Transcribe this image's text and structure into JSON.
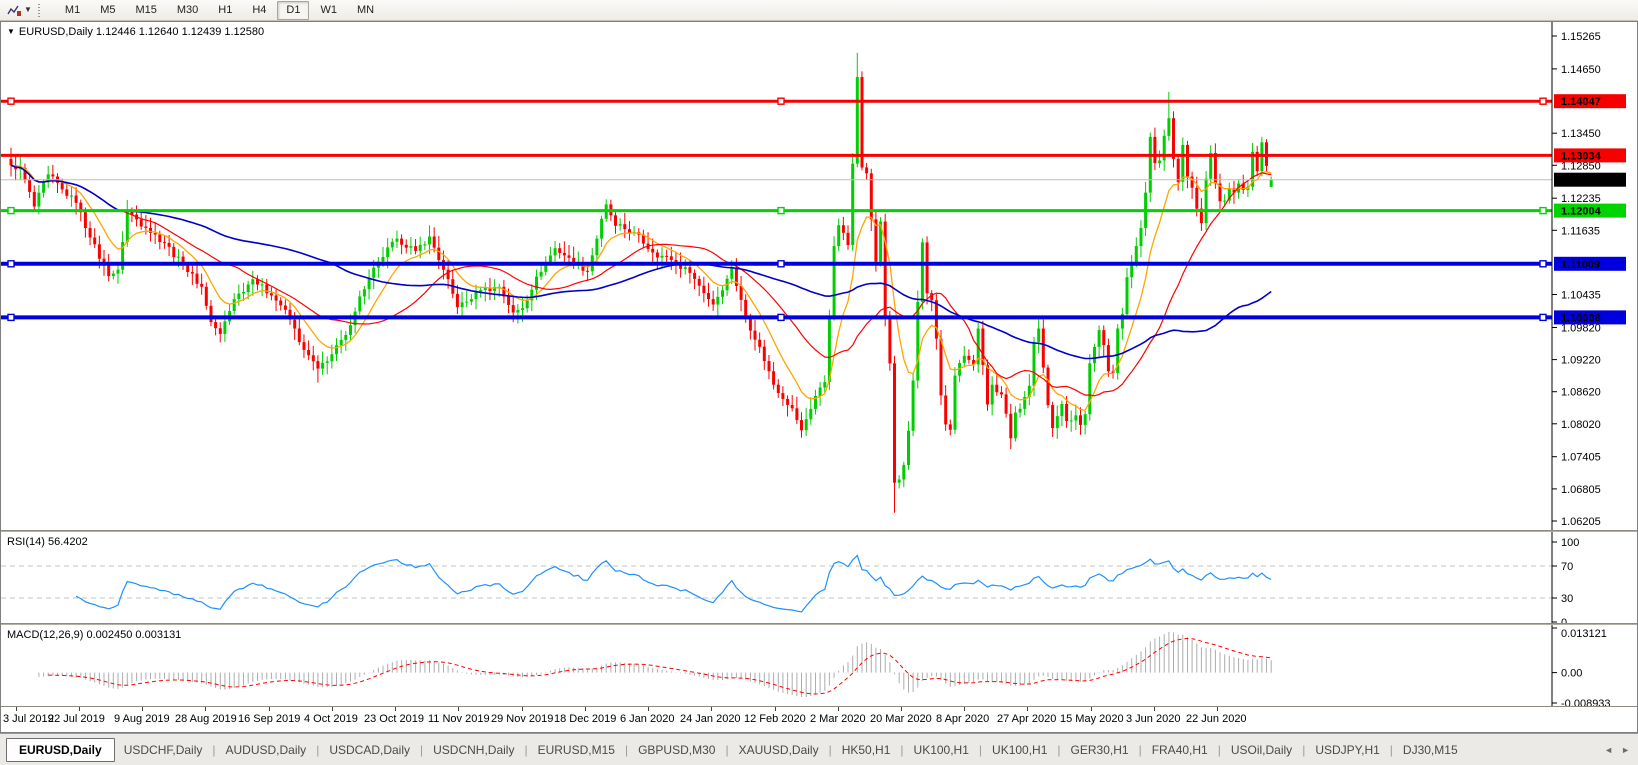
{
  "toolbar": {
    "timeframes": [
      "M1",
      "M5",
      "M15",
      "M30",
      "H1",
      "H4",
      "D1",
      "W1",
      "MN"
    ],
    "active_timeframe": "D1"
  },
  "chart": {
    "symbol_label": "EURUSD,Daily",
    "title_line": "EURUSD,Daily 1.12446 1.12640 1.12439 1.12580"
  },
  "price_scale": {
    "ticks": [
      "1.15265",
      "1.14650",
      "1.13450",
      "1.12850",
      "1.12235",
      "1.11635",
      "1.10435",
      "1.09820",
      "1.09220",
      "1.08620",
      "1.08020",
      "1.07405",
      "1.06805",
      "1.06205"
    ]
  },
  "hlines": [
    {
      "label": "1.14047",
      "price": 1.14047,
      "color": "#F60000",
      "width": 3,
      "selected": true
    },
    {
      "label": "1.13034",
      "price": 1.13034,
      "color": "#F60000",
      "width": 3,
      "selected": false
    },
    {
      "label": "1.12004",
      "price": 1.12004,
      "color": "#00D400",
      "width": 3,
      "selected": true
    },
    {
      "label": "1.11009",
      "price": 1.11009,
      "color": "#0000DE",
      "width": 4,
      "selected": true
    },
    {
      "label": "1.10008",
      "price": 1.10008,
      "color": "#0000DE",
      "width": 4,
      "selected": true
    }
  ],
  "current_price": {
    "label": "1.12580",
    "price": 1.1258,
    "line_color": "#BDBDBD",
    "badge_bg": "#000000"
  },
  "rsi": {
    "name": "RSI(14)",
    "value": "56.4202",
    "color": "#1E90FF",
    "period": 14,
    "scale": [
      {
        "v": 100,
        "label": "100",
        "dashed": false
      },
      {
        "v": 70,
        "label": "70",
        "dashed": true
      },
      {
        "v": 30,
        "label": "30",
        "dashed": true
      },
      {
        "v": 0,
        "label": "0",
        "dashed": false
      }
    ]
  },
  "macd": {
    "name": "MACD(12,26,9)",
    "values": "0.002450 0.003131",
    "hist_color": "#ACACAC",
    "signal_color": "#FF0000",
    "scale_max": 0.013121,
    "scale_min": -0.008933,
    "scale": [
      {
        "v": 0.013121,
        "label": "0.013121"
      },
      {
        "v": 0,
        "label": "0.00"
      },
      {
        "v": -0.008933,
        "label": "-0.008933"
      }
    ]
  },
  "date_axis": {
    "labels": [
      "3 Jul 2019",
      "22 Jul 2019",
      "9 Aug 2019",
      "28 Aug 2019",
      "16 Sep 2019",
      "4 Oct 2019",
      "23 Oct 2019",
      "11 Nov 2019",
      "29 Nov 2019",
      "18 Dec 2019",
      "6 Jan 2020",
      "24 Jan 2020",
      "12 Feb 2020",
      "2 Mar 2020",
      "20 Mar 2020",
      "8 Apr 2020",
      "27 Apr 2020",
      "15 May 2020",
      "3 Jun 2020",
      "22 Jun 2020"
    ]
  },
  "tabs": {
    "active": "EURUSD,Daily",
    "items": [
      "EURUSD,Daily",
      "USDCHF,Daily",
      "AUDUSD,Daily",
      "USDCAD,Daily",
      "USDCNH,Daily",
      "EURUSD,M15",
      "GBPUSD,M30",
      "XAUUSD,Daily",
      "HK50,H1",
      "UK100,H1",
      "UK100,H1",
      "GER30,H1",
      "FRA40,H1",
      "USOil,Daily",
      "USDJPY,H1",
      "DJ30,M15"
    ],
    "nav_left": "◄",
    "nav_right": "►"
  },
  "chart_data": {
    "type": "candlestick",
    "symbol": "EURUSD",
    "timeframe": "Daily",
    "bars": 272,
    "last_bar": {
      "open": 1.12446,
      "high": 1.1264,
      "low": 1.12439,
      "close": 1.1258
    },
    "ylim": [
      1.0605,
      1.1547
    ],
    "price_keypoints": [
      [
        0,
        1.1285
      ],
      [
        2,
        1.128
      ],
      [
        5,
        1.1208
      ],
      [
        8,
        1.1268
      ],
      [
        11,
        1.124
      ],
      [
        14,
        1.1215
      ],
      [
        17,
        1.115
      ],
      [
        21,
        1.1078
      ],
      [
        23,
        1.109
      ],
      [
        25,
        1.12
      ],
      [
        29,
        1.1168
      ],
      [
        33,
        1.114
      ],
      [
        37,
        1.1098
      ],
      [
        41,
        1.1058
      ],
      [
        43,
        1.0992
      ],
      [
        45,
        1.097
      ],
      [
        48,
        1.1035
      ],
      [
        52,
        1.1072
      ],
      [
        56,
        1.1042
      ],
      [
        59,
        1.1015
      ],
      [
        63,
        1.094
      ],
      [
        66,
        1.0905
      ],
      [
        69,
        1.0932
      ],
      [
        72,
        1.0968
      ],
      [
        75,
        1.104
      ],
      [
        79,
        1.1105
      ],
      [
        83,
        1.1148
      ],
      [
        87,
        1.1125
      ],
      [
        90,
        1.1152
      ],
      [
        93,
        1.109
      ],
      [
        96,
        1.102
      ],
      [
        99,
        1.1035
      ],
      [
        101,
        1.1052
      ],
      [
        105,
        1.1058
      ],
      [
        108,
        1.101
      ],
      [
        110,
        1.1018
      ],
      [
        113,
        1.1077
      ],
      [
        117,
        1.113
      ],
      [
        120,
        1.1112
      ],
      [
        124,
        1.1087
      ],
      [
        128,
        1.1212
      ],
      [
        130,
        1.1172
      ],
      [
        134,
        1.116
      ],
      [
        138,
        1.1122
      ],
      [
        142,
        1.1108
      ],
      [
        146,
        1.1084
      ],
      [
        151,
        1.1025
      ],
      [
        154,
        1.1073
      ],
      [
        155,
        1.1093
      ],
      [
        158,
        1.1
      ],
      [
        161,
        1.0946
      ],
      [
        164,
        1.0875
      ],
      [
        168,
        1.0831
      ],
      [
        170,
        1.079
      ],
      [
        173,
        1.0854
      ],
      [
        175,
        1.088
      ],
      [
        177,
        1.1134
      ],
      [
        178,
        1.1173
      ],
      [
        180,
        1.1136
      ],
      [
        181,
        1.1288
      ],
      [
        182,
        1.145
      ],
      [
        183,
        1.1281
      ],
      [
        184,
        1.127
      ],
      [
        185,
        1.1184
      ],
      [
        186,
        1.1105
      ],
      [
        187,
        1.118
      ],
      [
        188,
        1.0999
      ],
      [
        189,
        1.0915
      ],
      [
        190,
        1.0692
      ],
      [
        191,
        1.0698
      ],
      [
        192,
        1.0725
      ],
      [
        193,
        1.0789
      ],
      [
        194,
        1.0883
      ],
      [
        195,
        1.103
      ],
      [
        196,
        1.1141
      ],
      [
        197,
        1.1046
      ],
      [
        198,
        1.1033
      ],
      [
        199,
        1.0961
      ],
      [
        200,
        1.0855
      ],
      [
        201,
        1.0801
      ],
      [
        202,
        1.0791
      ],
      [
        203,
        1.0892
      ],
      [
        205,
        1.0929
      ],
      [
        207,
        1.0913
      ],
      [
        208,
        1.098
      ],
      [
        209,
        1.0912
      ],
      [
        210,
        1.0838
      ],
      [
        211,
        1.0875
      ],
      [
        213,
        1.0857
      ],
      [
        214,
        1.0821
      ],
      [
        215,
        1.0775
      ],
      [
        216,
        1.0823
      ],
      [
        217,
        1.083
      ],
      [
        219,
        1.0873
      ],
      [
        220,
        1.0955
      ],
      [
        221,
        1.098
      ],
      [
        222,
        1.0907
      ],
      [
        223,
        1.0837
      ],
      [
        224,
        1.0794
      ],
      [
        226,
        1.0839
      ],
      [
        227,
        1.0807
      ],
      [
        229,
        1.0818
      ],
      [
        230,
        1.08
      ],
      [
        231,
        1.082
      ],
      [
        232,
        1.0915
      ],
      [
        234,
        1.0977
      ],
      [
        235,
        1.0949
      ],
      [
        236,
        1.09
      ],
      [
        237,
        1.0897
      ],
      [
        238,
        1.098
      ],
      [
        239,
        1.1007
      ],
      [
        240,
        1.1076
      ],
      [
        241,
        1.1101
      ],
      [
        242,
        1.1134
      ],
      [
        243,
        1.1168
      ],
      [
        244,
        1.1234
      ],
      [
        245,
        1.1338
      ],
      [
        246,
        1.1289
      ],
      [
        247,
        1.1294
      ],
      [
        248,
        1.134
      ],
      [
        249,
        1.1373
      ],
      [
        250,
        1.1297
      ],
      [
        251,
        1.1254
      ],
      [
        252,
        1.1323
      ],
      [
        253,
        1.1264
      ],
      [
        254,
        1.1243
      ],
      [
        255,
        1.1204
      ],
      [
        256,
        1.1177
      ],
      [
        257,
        1.126
      ],
      [
        258,
        1.1308
      ],
      [
        259,
        1.1251
      ],
      [
        260,
        1.1218
      ],
      [
        261,
        1.1219
      ],
      [
        262,
        1.1242
      ],
      [
        263,
        1.1234
      ],
      [
        264,
        1.1251
      ],
      [
        265,
        1.1239
      ],
      [
        266,
        1.1245
      ],
      [
        267,
        1.131
      ],
      [
        268,
        1.1274
      ],
      [
        269,
        1.1328
      ],
      [
        270,
        1.1284
      ],
      [
        271,
        1.1258
      ]
    ],
    "extremes": [
      [
        66,
        "low",
        1.0879
      ],
      [
        170,
        "low",
        1.0778
      ],
      [
        182,
        "high",
        1.1495
      ],
      [
        190,
        "low",
        1.0636
      ],
      [
        215,
        "low",
        1.0756
      ],
      [
        249,
        "high",
        1.1422
      ]
    ],
    "noise": 0.0012,
    "wick": 0.0022,
    "colors": {
      "up": "#00CE00",
      "down": "#FB0000"
    },
    "moving_averages": [
      {
        "period": 10,
        "method": "ema",
        "color": "#FFA500",
        "width": 1.3
      },
      {
        "period": 25,
        "method": "sma",
        "color": "#FF0000",
        "width": 1.2
      },
      {
        "period": 70,
        "method": "sma",
        "color": "#0000CC",
        "width": 1.6
      }
    ],
    "indicators": {
      "rsi_period": 14,
      "macd_params": [
        12,
        26,
        9
      ]
    }
  }
}
